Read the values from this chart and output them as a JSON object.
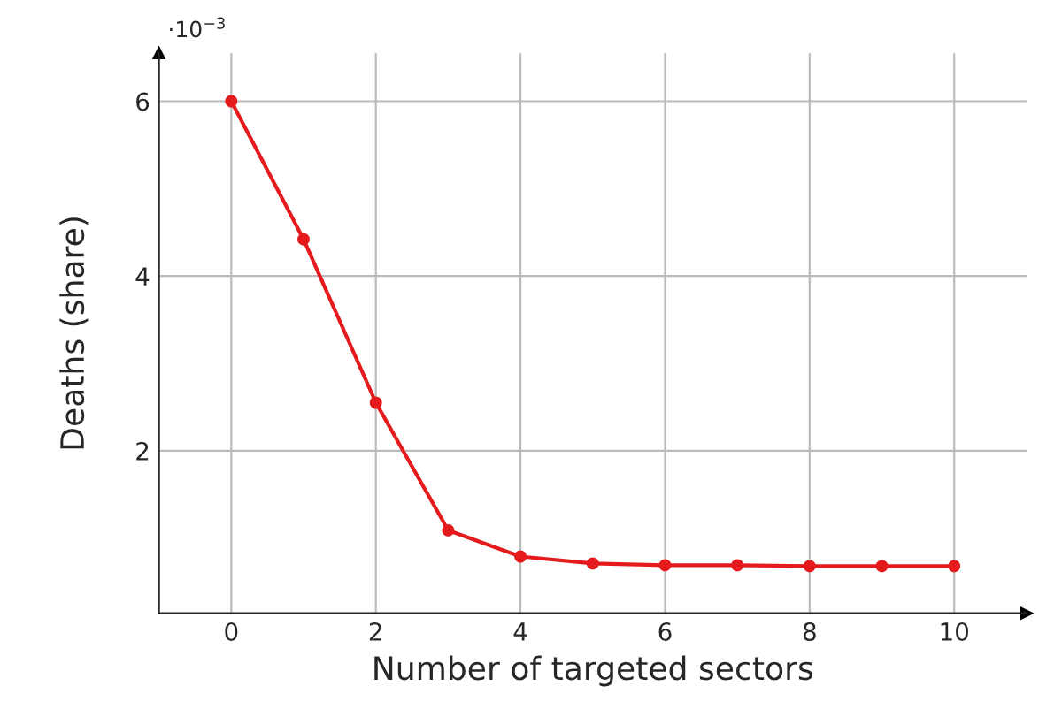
{
  "chart_data": {
    "type": "line",
    "xlabel": "Number of targeted sectors",
    "ylabel": "Deaths (share)",
    "x": [
      0,
      1,
      2,
      3,
      4,
      5,
      6,
      7,
      8,
      9,
      10
    ],
    "series": [
      {
        "color": "#e41a1c",
        "values": [
          6.0,
          4.42,
          2.55,
          1.09,
          0.79,
          0.71,
          0.69,
          0.69,
          0.68,
          0.68,
          0.68
        ]
      }
    ],
    "xlim": [
      -1,
      11
    ],
    "ylim": [
      0.14,
      6.55
    ],
    "xticks": [
      0,
      2,
      4,
      6,
      8,
      10
    ],
    "yticks": [
      2,
      4,
      6
    ],
    "grid": true,
    "marker": "circle",
    "line_style": "solid",
    "annotations": [
      "·10$^{−3}$"
    ]
  }
}
